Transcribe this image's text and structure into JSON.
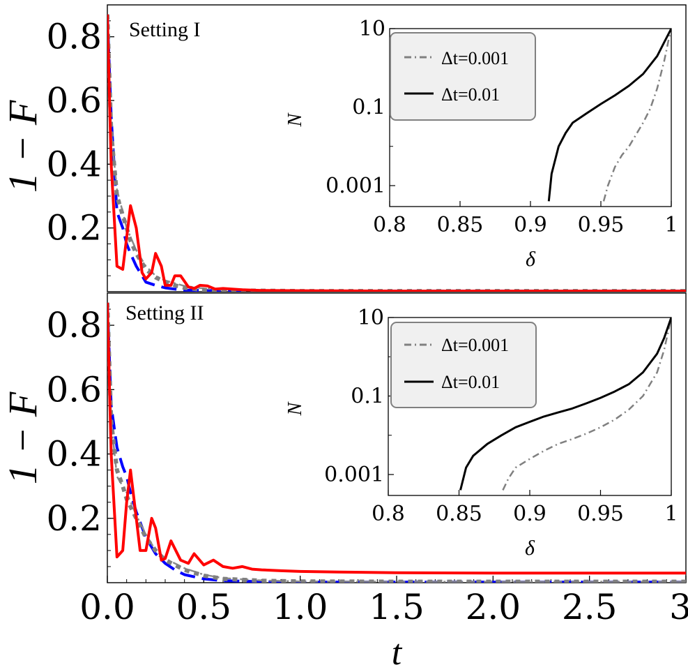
{
  "chart_data": [
    {
      "type": "line",
      "panel": "top",
      "annotation": "Setting I",
      "xlabel": "",
      "ylabel": "1 − F",
      "xlim": [
        0,
        3.0
      ],
      "ylim": [
        0,
        0.9
      ],
      "y_ticks": [
        0.2,
        0.4,
        0.6,
        0.8
      ],
      "y_tick_labels": [
        "0.2",
        "0.4",
        "0.6",
        "0.8"
      ],
      "grid": false,
      "series": [
        {
          "color": "#ff0000",
          "style": "solid",
          "x": [
            0,
            0.02,
            0.05,
            0.08,
            0.1,
            0.12,
            0.15,
            0.18,
            0.2,
            0.23,
            0.25,
            0.28,
            0.3,
            0.33,
            0.35,
            0.38,
            0.42,
            0.45,
            0.48,
            0.52,
            0.56,
            0.6,
            0.7,
            0.8,
            1.0,
            1.5,
            2.0,
            2.5,
            3.0
          ],
          "y": [
            0.87,
            0.4,
            0.08,
            0.07,
            0.17,
            0.27,
            0.2,
            0.06,
            0.04,
            0.06,
            0.12,
            0.08,
            0.02,
            0.02,
            0.05,
            0.05,
            0.015,
            0.01,
            0.02,
            0.018,
            0.008,
            0.01,
            0.006,
            0.004,
            0.003,
            0.002,
            0.002,
            0.002,
            0.002
          ]
        },
        {
          "color": "#0000ff",
          "style": "dashed",
          "x": [
            0,
            0.02,
            0.05,
            0.08,
            0.1,
            0.12,
            0.15,
            0.18,
            0.2,
            0.25,
            0.3,
            0.35,
            0.4,
            0.5,
            0.6,
            0.8,
            1.0,
            1.5,
            2.0,
            2.5,
            3.0
          ],
          "y": [
            0.87,
            0.55,
            0.25,
            0.2,
            0.15,
            0.12,
            0.08,
            0.05,
            0.03,
            0.02,
            0.012,
            0.008,
            0.005,
            0.004,
            0.003,
            0.002,
            0.002,
            0.002,
            0.002,
            0.002,
            0.002
          ]
        },
        {
          "color": "#808080",
          "style": "dotted",
          "x": [
            0,
            0.02,
            0.05,
            0.08,
            0.1,
            0.12,
            0.15,
            0.2,
            0.25,
            0.3,
            0.35,
            0.4,
            0.5,
            0.6,
            0.8,
            1.0,
            1.5,
            2.0,
            2.5,
            3.0
          ],
          "y": [
            0.87,
            0.5,
            0.3,
            0.24,
            0.2,
            0.16,
            0.12,
            0.07,
            0.045,
            0.03,
            0.02,
            0.012,
            0.006,
            0.004,
            0.003,
            0.002,
            0.002,
            0.002,
            0.002,
            0.002
          ]
        },
        {
          "color": "#8a8a8a",
          "style": "dashdot",
          "x": [
            0,
            0.02,
            0.05,
            0.08,
            0.1,
            0.15,
            0.2,
            0.25,
            0.3,
            0.4,
            0.5,
            0.6,
            0.8,
            1.0,
            1.5,
            2.0,
            2.5,
            3.0
          ],
          "y": [
            0.87,
            0.5,
            0.32,
            0.25,
            0.2,
            0.13,
            0.08,
            0.05,
            0.035,
            0.018,
            0.01,
            0.006,
            0.004,
            0.003,
            0.002,
            0.002,
            0.002,
            0.002
          ]
        }
      ]
    },
    {
      "type": "line",
      "panel": "bottom",
      "annotation": "Setting II",
      "xlabel": "t",
      "ylabel": "1 − F",
      "xlim": [
        0,
        3.0
      ],
      "ylim": [
        0,
        0.9
      ],
      "x_ticks": [
        0,
        0.5,
        1.0,
        1.5,
        2.0,
        2.5,
        3.0
      ],
      "x_tick_labels": [
        "0.0",
        "0.5",
        "1.0",
        "1.5",
        "2.0",
        "2.5",
        "3."
      ],
      "y_ticks": [
        0.2,
        0.4,
        0.6,
        0.8
      ],
      "y_tick_labels": [
        "0.2",
        "0.4",
        "0.6",
        "0.8"
      ],
      "grid": false,
      "series": [
        {
          "color": "#ff0000",
          "style": "solid",
          "x": [
            0,
            0.02,
            0.05,
            0.08,
            0.1,
            0.12,
            0.15,
            0.17,
            0.2,
            0.23,
            0.25,
            0.28,
            0.3,
            0.33,
            0.38,
            0.42,
            0.45,
            0.5,
            0.55,
            0.6,
            0.65,
            0.7,
            0.75,
            0.8,
            0.9,
            1.0,
            1.2,
            1.5,
            2.0,
            2.5,
            3.0
          ],
          "y": [
            0.87,
            0.4,
            0.08,
            0.1,
            0.25,
            0.35,
            0.2,
            0.1,
            0.1,
            0.2,
            0.17,
            0.07,
            0.075,
            0.13,
            0.07,
            0.06,
            0.09,
            0.055,
            0.07,
            0.05,
            0.045,
            0.05,
            0.042,
            0.04,
            0.037,
            0.035,
            0.033,
            0.031,
            0.03,
            0.03,
            0.03
          ]
        },
        {
          "color": "#0000ff",
          "style": "dashed",
          "x": [
            0,
            0.02,
            0.05,
            0.08,
            0.1,
            0.12,
            0.15,
            0.2,
            0.25,
            0.3,
            0.35,
            0.4,
            0.5,
            0.6,
            0.8,
            1.0,
            1.5,
            2.0,
            2.5,
            3.0
          ],
          "y": [
            0.87,
            0.55,
            0.42,
            0.36,
            0.33,
            0.28,
            0.22,
            0.14,
            0.09,
            0.06,
            0.04,
            0.025,
            0.012,
            0.006,
            0.003,
            0.002,
            0.002,
            0.002,
            0.002,
            0.002
          ]
        },
        {
          "color": "#808080",
          "style": "dotted",
          "x": [
            0,
            0.02,
            0.05,
            0.08,
            0.1,
            0.15,
            0.2,
            0.25,
            0.3,
            0.4,
            0.5,
            0.6,
            0.8,
            1.0,
            1.5,
            2.0,
            2.5,
            3.0
          ],
          "y": [
            0.87,
            0.5,
            0.35,
            0.3,
            0.26,
            0.2,
            0.14,
            0.1,
            0.07,
            0.04,
            0.022,
            0.012,
            0.006,
            0.004,
            0.003,
            0.003,
            0.003,
            0.003
          ]
        },
        {
          "color": "#8a8a8a",
          "style": "dashdot",
          "x": [
            0,
            0.02,
            0.05,
            0.08,
            0.1,
            0.15,
            0.2,
            0.25,
            0.3,
            0.4,
            0.5,
            0.6,
            0.8,
            1.0,
            1.5,
            2.0,
            2.5,
            3.0
          ],
          "y": [
            0.87,
            0.5,
            0.33,
            0.3,
            0.28,
            0.21,
            0.15,
            0.1,
            0.075,
            0.045,
            0.025,
            0.014,
            0.007,
            0.004,
            0.003,
            0.003,
            0.003,
            0.003
          ]
        }
      ]
    },
    {
      "type": "line",
      "panel": "top-inset",
      "xlabel": "δ",
      "ylabel": "N",
      "xlim": [
        0.8,
        1.0
      ],
      "ylim": [
        0.0004,
        10
      ],
      "yscale": "log",
      "x_ticks": [
        0.8,
        0.85,
        0.9,
        0.95,
        1.0
      ],
      "x_tick_labels": [
        "0.8",
        "0.85",
        "0.9",
        "0.95",
        "1"
      ],
      "y_ticks": [
        0.001,
        0.1,
        10
      ],
      "y_tick_labels": [
        "0.001",
        "0.1",
        "10"
      ],
      "legend_position": "top-left",
      "series": [
        {
          "name": "Δt=0.001",
          "color": "#808080",
          "style": "dashdot",
          "x": [
            0.952,
            0.955,
            0.96,
            0.965,
            0.97,
            0.975,
            0.98,
            0.985,
            0.99,
            0.995,
            0.998,
            1.0
          ],
          "y": [
            0.0004,
            0.001,
            0.003,
            0.006,
            0.01,
            0.02,
            0.04,
            0.09,
            0.3,
            1.5,
            5,
            10
          ]
        },
        {
          "name": "Δt=0.01",
          "color": "#000000",
          "style": "solid",
          "x": [
            0.913,
            0.915,
            0.92,
            0.925,
            0.93,
            0.94,
            0.95,
            0.96,
            0.97,
            0.98,
            0.99,
            0.995,
            1.0
          ],
          "y": [
            0.0004,
            0.002,
            0.01,
            0.022,
            0.04,
            0.07,
            0.12,
            0.2,
            0.35,
            0.7,
            2,
            4.5,
            10
          ]
        }
      ]
    },
    {
      "type": "line",
      "panel": "bottom-inset",
      "xlabel": "δ",
      "ylabel": "N",
      "xlim": [
        0.8,
        1.0
      ],
      "ylim": [
        0.0004,
        10
      ],
      "yscale": "log",
      "x_ticks": [
        0.8,
        0.85,
        0.9,
        0.95,
        1.0
      ],
      "x_tick_labels": [
        "0.8",
        "0.85",
        "0.9",
        "0.95",
        "1"
      ],
      "y_ticks": [
        0.001,
        0.1,
        10
      ],
      "y_tick_labels": [
        "0.001",
        "0.1",
        "10"
      ],
      "legend_position": "top-left",
      "series": [
        {
          "name": "Δt=0.001",
          "color": "#808080",
          "style": "dashdot",
          "x": [
            0.881,
            0.885,
            0.89,
            0.9,
            0.91,
            0.92,
            0.93,
            0.94,
            0.95,
            0.96,
            0.97,
            0.98,
            0.99,
            0.995,
            1.0
          ],
          "y": [
            0.0004,
            0.0008,
            0.0015,
            0.0025,
            0.004,
            0.006,
            0.008,
            0.011,
            0.016,
            0.025,
            0.045,
            0.1,
            0.4,
            1.5,
            10
          ]
        },
        {
          "name": "Δt=0.01",
          "color": "#000000",
          "style": "solid",
          "x": [
            0.851,
            0.855,
            0.86,
            0.87,
            0.88,
            0.89,
            0.9,
            0.91,
            0.92,
            0.93,
            0.94,
            0.95,
            0.96,
            0.97,
            0.98,
            0.99,
            0.995,
            1.0
          ],
          "y": [
            0.0004,
            0.0015,
            0.003,
            0.006,
            0.01,
            0.016,
            0.022,
            0.03,
            0.038,
            0.048,
            0.065,
            0.09,
            0.13,
            0.2,
            0.4,
            1.2,
            3,
            10
          ]
        }
      ]
    }
  ]
}
